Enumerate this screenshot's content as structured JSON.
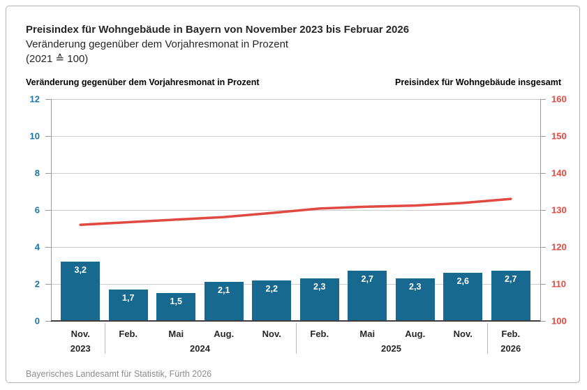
{
  "header": {
    "title": "Preisindex für Wohngebäude in Bayern von November 2023 bis Februar 2026",
    "subtitle": "Veränderung gegenüber dem Vorjahresmonat in Prozent",
    "base_note": "(2021 ≙ 100)"
  },
  "axis_titles": {
    "left": "Veränderung gegenüber dem Vorjahresmonat in Prozent",
    "right": "Preisindex für Wohngebäude insgesamt"
  },
  "footer": {
    "source": "Bayerisches Landesamt für Statistik, Fürth 2026"
  },
  "colors": {
    "bar_fill": "#17698f",
    "bar_label": "#ffffff",
    "line_stroke": "#e04a41",
    "left_axis_text": "#1b76a4",
    "right_axis_text": "#e04a41",
    "gridline": "#cccccc",
    "axis_line": "#999999",
    "baseline": "#3d3d3d",
    "text_dark": "#262626",
    "separator": "#b9b9b9"
  },
  "chart_data": {
    "type": "bar+line",
    "title": "Preisindex für Wohngebäude in Bayern von November 2023 bis Februar 2026",
    "categories": [
      "Nov. 2023",
      "Feb. 2024",
      "Mai 2024",
      "Aug. 2024",
      "Nov. 2024",
      "Feb. 2025",
      "Mai 2025",
      "Aug. 2025",
      "Nov. 2025",
      "Feb. 2026"
    ],
    "month_labels": [
      "Nov.",
      "Feb.",
      "Mai",
      "Aug.",
      "Nov.",
      "Feb.",
      "Mai",
      "Aug.",
      "Nov.",
      "Feb."
    ],
    "year_groups": [
      {
        "label": "2023",
        "span": 1
      },
      {
        "label": "2024",
        "span": 4
      },
      {
        "label": "2025",
        "span": 4
      },
      {
        "label": "2026",
        "span": 1
      }
    ],
    "series": [
      {
        "name": "Veränderung gegenüber dem Vorjahresmonat in Prozent",
        "type": "bar",
        "axis": "left",
        "values": [
          3.2,
          1.7,
          1.5,
          2.1,
          2.2,
          2.3,
          2.7,
          2.3,
          2.6,
          2.7
        ],
        "value_labels": [
          "3,2",
          "1,7",
          "1,5",
          "2,1",
          "2,2",
          "2,3",
          "2,7",
          "2,3",
          "2,6",
          "2,7"
        ]
      },
      {
        "name": "Preisindex für Wohngebäude insgesamt",
        "type": "line",
        "axis": "right",
        "values": [
          126.0,
          126.7,
          127.4,
          128.1,
          129.2,
          130.4,
          130.9,
          131.2,
          131.9,
          133.0
        ]
      }
    ],
    "left_axis": {
      "min": 0,
      "max": 12,
      "ticks": [
        0,
        2,
        4,
        6,
        8,
        10,
        12
      ],
      "grid": true
    },
    "right_axis": {
      "min": 100,
      "max": 160,
      "ticks": [
        100,
        110,
        120,
        130,
        140,
        150,
        160
      ]
    },
    "legend_position": "top"
  }
}
